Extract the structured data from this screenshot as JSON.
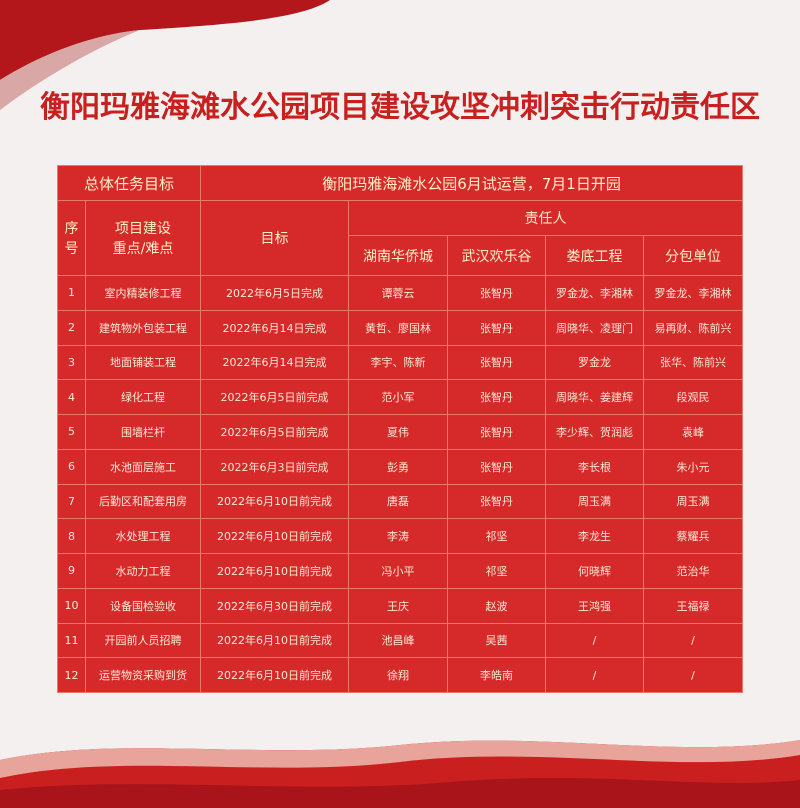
{
  "header": {
    "title": "衡阳玛雅海滩水公园项目建设攻坚冲刺突击行动责任区"
  },
  "table": {
    "overall_label": "总体任务目标",
    "overall_goal": "衡阳玛雅海滩水公园6月试运营，7月1日开园",
    "col_no": "序号",
    "col_project": [
      "项目建设",
      "重点/难点"
    ],
    "col_target": "目标",
    "col_responsible": "责任人",
    "responsible_units": [
      "湖南华侨城",
      "武汉欢乐谷",
      "娄底工程",
      "分包单位"
    ],
    "rows": [
      [
        "1",
        "室内精装修工程",
        "2022年6月5日完成",
        "谭蓉云",
        "张智丹",
        "罗金龙、李湘林",
        "罗金龙、李湘林"
      ],
      [
        "2",
        "建筑物外包装工程",
        "2022年6月14日完成",
        "黄哲、廖国林",
        "张智丹",
        "周晓华、凌理门",
        "易再财、陈前兴"
      ],
      [
        "3",
        "地面铺装工程",
        "2022年6月14日完成",
        "李宇、陈新",
        "张智丹",
        "罗金龙",
        "张华、陈前兴"
      ],
      [
        "4",
        "绿化工程",
        "2022年6月5日前完成",
        "范小军",
        "张智丹",
        "周晓华、姜建辉",
        "段观民"
      ],
      [
        "5",
        "围墙栏杆",
        "2022年6月5日前完成",
        "夏伟",
        "张智丹",
        "李少辉、贺润彪",
        "袁峰"
      ],
      [
        "6",
        "水池面层施工",
        "2022年6月3日前完成",
        "彭勇",
        "张智丹",
        "李长根",
        "朱小元"
      ],
      [
        "7",
        "后勤区和配套用房",
        "2022年6月10日前完成",
        "唐磊",
        "张智丹",
        "周玉满",
        "周玉满"
      ],
      [
        "8",
        "水处理工程",
        "2022年6月10日前完成",
        "李涛",
        "祁坚",
        "李龙生",
        "蔡耀兵"
      ],
      [
        "9",
        "水动力工程",
        "2022年6月10日前完成",
        "冯小平",
        "祁坚",
        "何晓辉",
        "范治华"
      ],
      [
        "10",
        "设备国检验收",
        "2022年6月30日前完成",
        "王庆",
        "赵波",
        "王鸿强",
        "王福禄"
      ],
      [
        "11",
        "开园前人员招聘",
        "2022年6月10日前完成",
        "池昌峰",
        "吴茜",
        "/",
        "/"
      ],
      [
        "12",
        "运营物资采购到货",
        "2022年6月10日前完成",
        "徐翔",
        "李皓南",
        "/",
        "/"
      ]
    ]
  }
}
